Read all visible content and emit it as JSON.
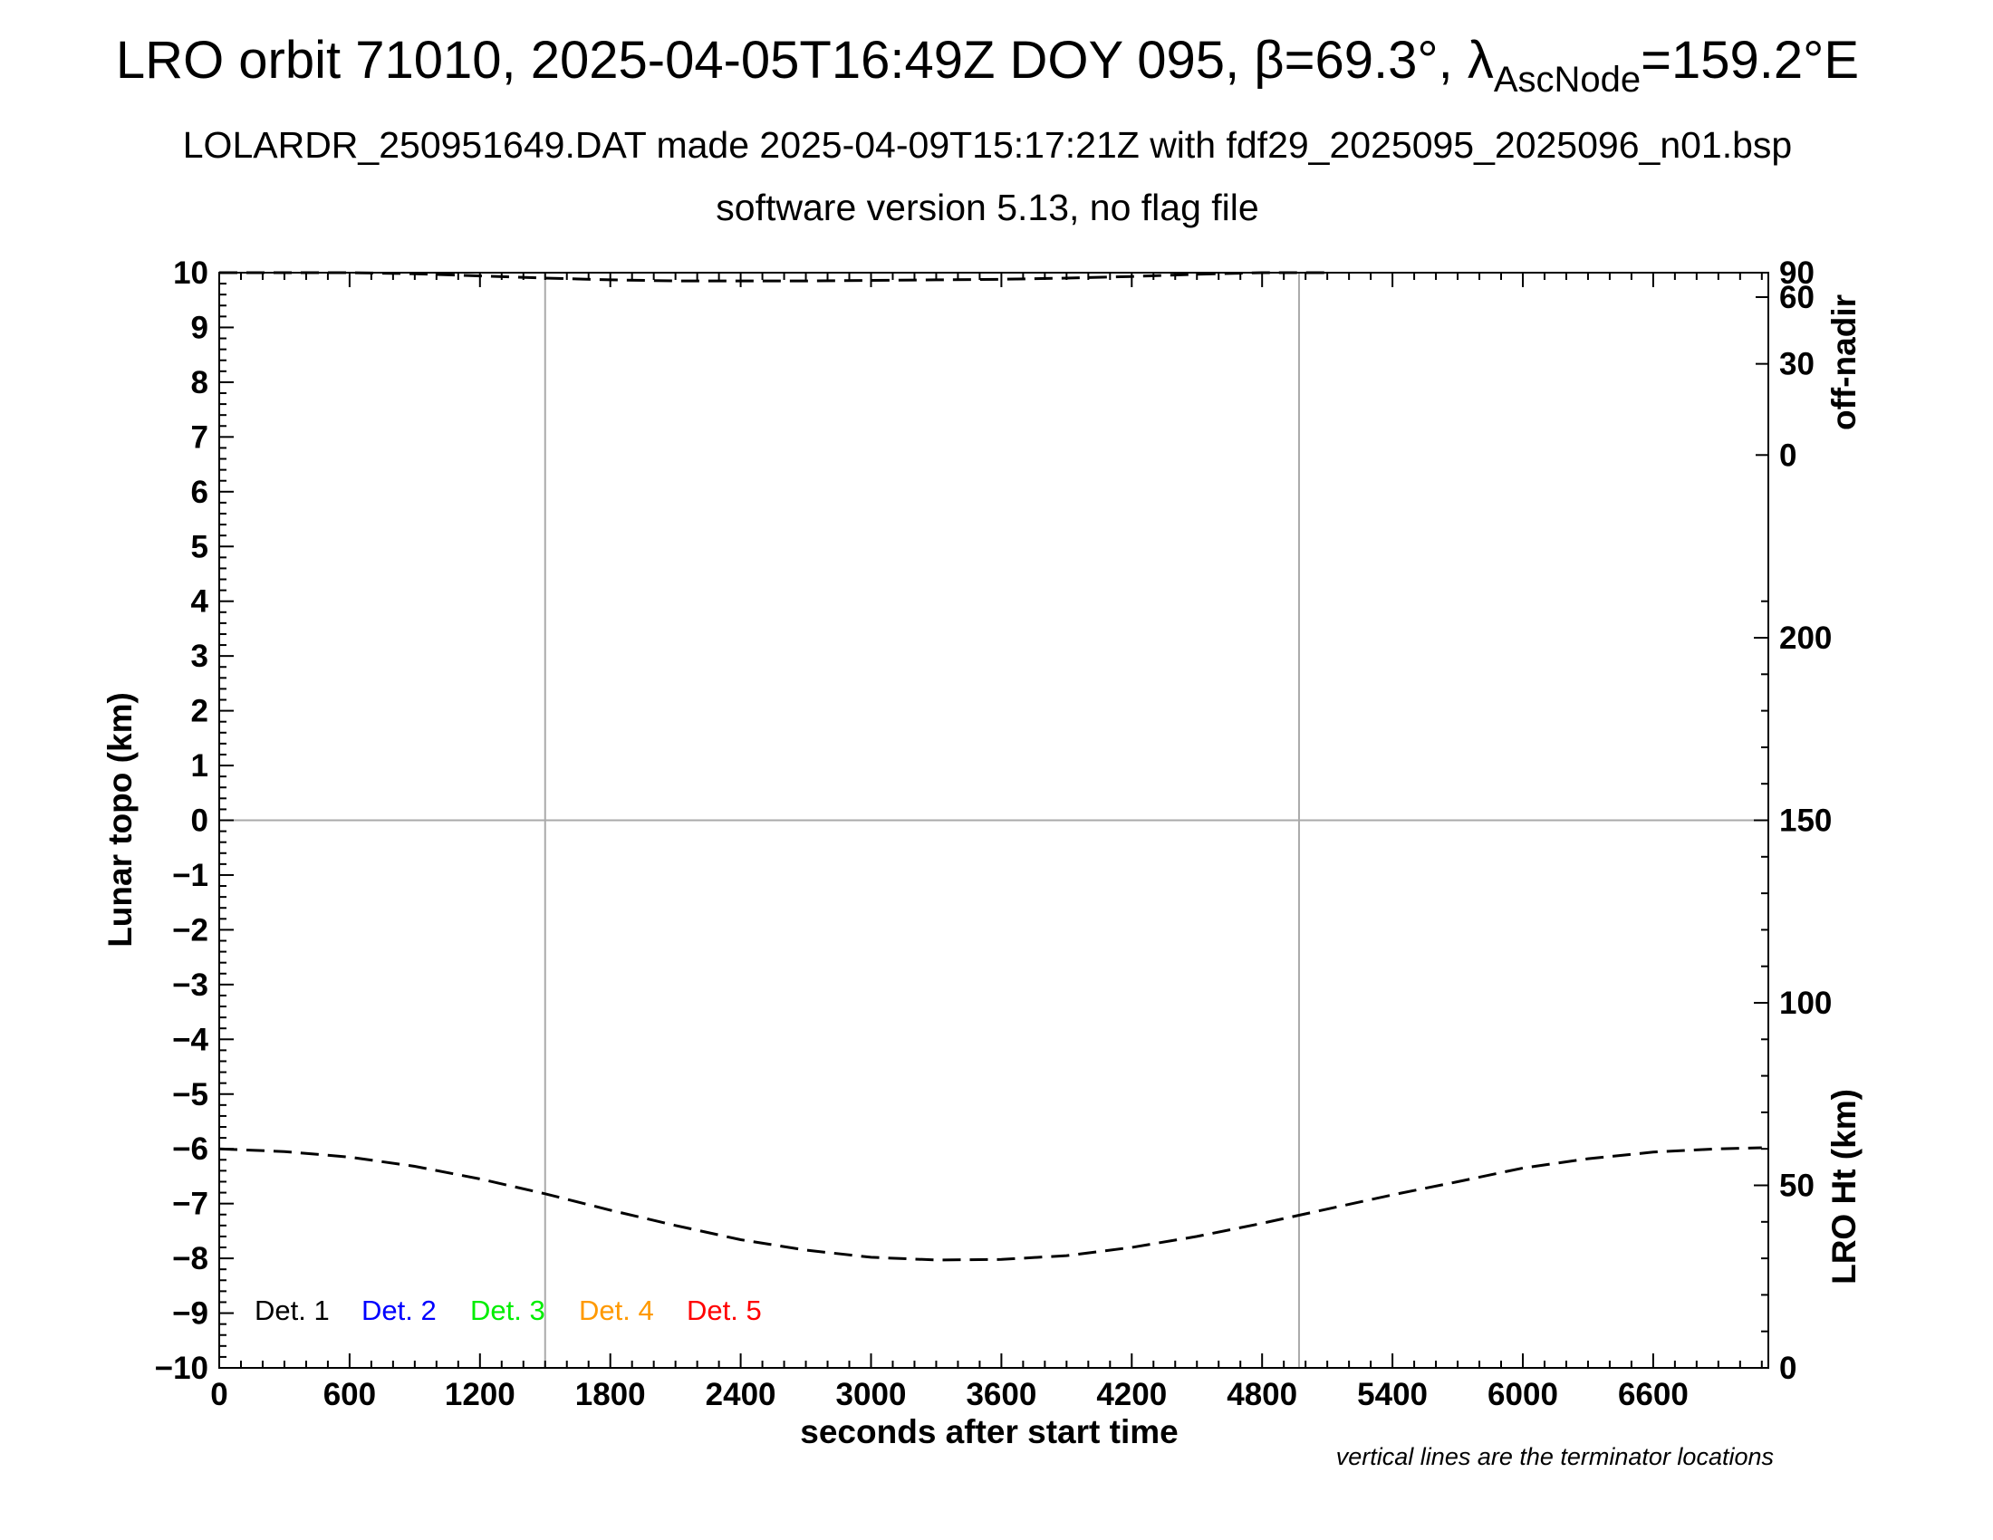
{
  "title": {
    "main_prefix": "LRO orbit 71010, 2025-04-05T16:49Z DOY 095, β=69.3°, λ",
    "main_sub": "AscNode",
    "main_suffix": "=159.2°E",
    "line2": "LOLARDR_250951649.DAT made 2025-04-09T15:17:21Z with fdf29_2025095_2025096_n01.bsp",
    "line3": "software version 5.13, no flag file"
  },
  "note": "vertical lines are the terminator locations",
  "chart_data": {
    "type": "line",
    "xlabel": "seconds after start time",
    "ylabel": "Lunar topo (km)",
    "xlim": [
      0,
      7130
    ],
    "ylim": [
      -10,
      10
    ],
    "x_ticks": [
      0,
      600,
      1200,
      1800,
      2400,
      3000,
      3600,
      4200,
      4800,
      5400,
      6000,
      6600
    ],
    "y_ticks": [
      10,
      9,
      8,
      7,
      6,
      5,
      4,
      3,
      2,
      1,
      0,
      -1,
      -2,
      -3,
      -4,
      -5,
      -6,
      -7,
      -8,
      -9,
      -10
    ],
    "y_tick_labels": [
      "10",
      "9",
      "8",
      "7",
      "6",
      "5",
      "4",
      "3",
      "2",
      "1",
      "0",
      "−1",
      "−2",
      "−3",
      "−4",
      "−5",
      "−6",
      "−7",
      "−8",
      "−9",
      "−10"
    ],
    "grid": false,
    "terminator_lines_x": [
      1500,
      4970
    ],
    "zero_line_y": 0,
    "right_axis_top": {
      "label": "off-nadir",
      "ticks": [
        90,
        60,
        30,
        0
      ],
      "range_km_equivalent": [
        6.67,
        10
      ]
    },
    "right_axis_bottom": {
      "label": "LRO Ht (km)",
      "ticks": [
        200,
        150,
        100,
        50,
        0
      ],
      "range": [
        0,
        300
      ]
    },
    "legend": {
      "placement": "bottom-left",
      "entries": [
        {
          "label": "Det. 1",
          "color": "#000000"
        },
        {
          "label": "Det. 2",
          "color": "#0000ff"
        },
        {
          "label": "Det. 3",
          "color": "#00ee00"
        },
        {
          "label": "Det. 4",
          "color": "#ff9900"
        },
        {
          "label": "Det. 5",
          "color": "#ff0000"
        }
      ]
    },
    "series": [
      {
        "label": "off-nadir",
        "style": "dashed",
        "color": "#000000",
        "x": [
          0,
          300,
          600,
          900,
          1200,
          1500,
          1800,
          2100,
          2400,
          2700,
          3000,
          3300,
          3600,
          3900,
          4200,
          4500,
          4800,
          5100
        ],
        "y": [
          10.0,
          10.0,
          10.0,
          9.98,
          9.94,
          9.9,
          9.87,
          9.85,
          9.85,
          9.85,
          9.86,
          9.87,
          9.88,
          9.9,
          9.93,
          9.97,
          10.0,
          10.0
        ]
      },
      {
        "label": "LRO Ht",
        "style": "dashed",
        "color": "#000000",
        "x": [
          0,
          300,
          600,
          900,
          1200,
          1500,
          1800,
          2100,
          2400,
          2700,
          3000,
          3300,
          3600,
          3900,
          4200,
          4500,
          4800,
          5100,
          5400,
          5700,
          6000,
          6300,
          6600,
          6900,
          7100
        ],
        "y": [
          -6.0,
          -6.05,
          -6.15,
          -6.32,
          -6.55,
          -6.82,
          -7.12,
          -7.4,
          -7.66,
          -7.85,
          -7.98,
          -8.03,
          -8.02,
          -7.95,
          -7.8,
          -7.6,
          -7.36,
          -7.1,
          -6.84,
          -6.6,
          -6.35,
          -6.18,
          -6.06,
          -6.0,
          -5.98
        ]
      }
    ]
  }
}
